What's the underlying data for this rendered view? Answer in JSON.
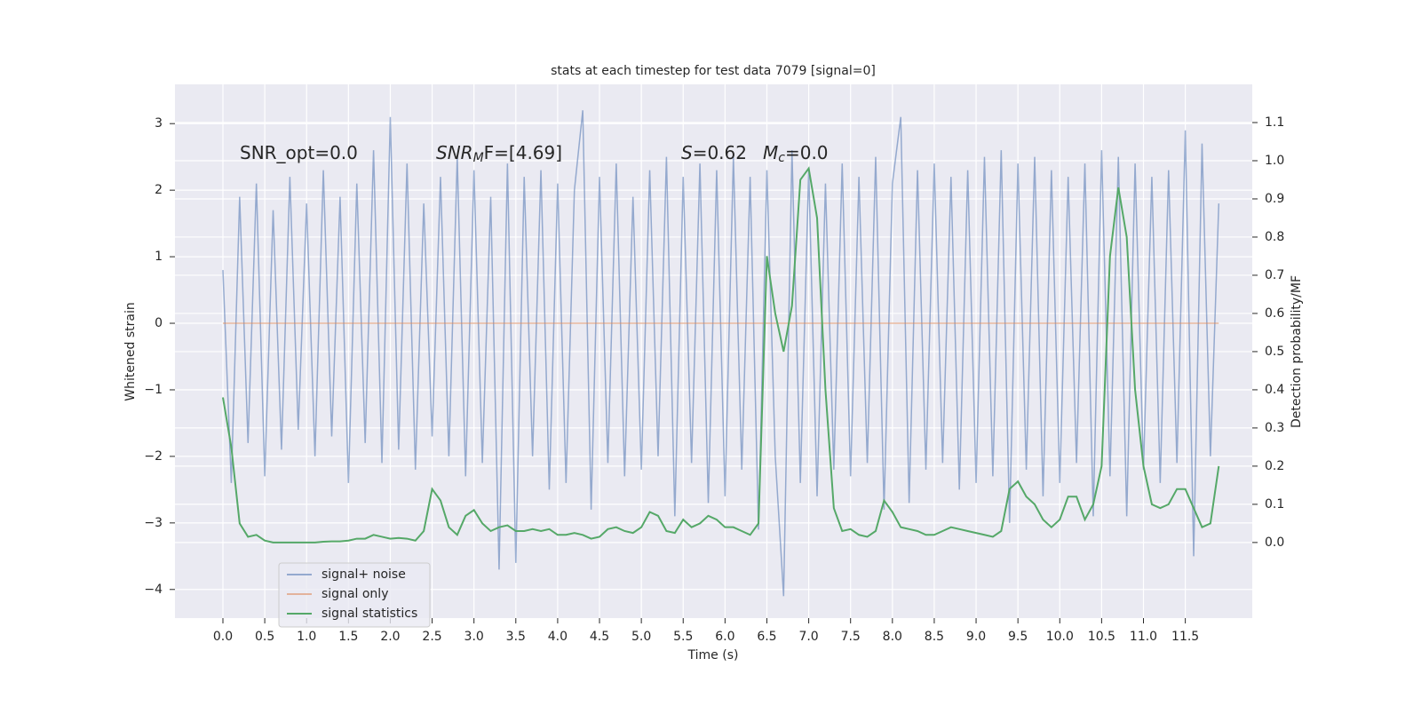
{
  "chart_data": {
    "type": "line",
    "title": "stats at each timestep for test data 7079 [signal=0]",
    "xlabel": "Time (s)",
    "ylabel": "Whitened strain",
    "y2label": "Detection probability/MF",
    "annotations": [
      {
        "text": "SNR_opt=0.0"
      },
      {
        "text": "SNR",
        "sub": "M",
        "after": "F=[4.69]"
      },
      {
        "text": "S",
        "after": "=0.62"
      },
      {
        "text": "M",
        "sub": "c",
        "after": "=0.0"
      }
    ],
    "legend": "lower left",
    "grid": true,
    "background": "#eaeaf2",
    "xlim": [
      -0.573,
      12.3
    ],
    "ylim": [
      -4.43,
      3.59
    ],
    "y2lim": [
      -0.198,
      1.2
    ],
    "xticks": [
      {
        "value": 0,
        "label": "0.0"
      },
      0.5,
      {
        "value": 1,
        "label": "1.0"
      },
      1.5,
      {
        "value": 2,
        "label": "2.0"
      },
      2.5,
      {
        "value": 3,
        "label": "3.0"
      },
      3.5,
      {
        "value": 4,
        "label": "4.0"
      },
      4.5,
      {
        "value": 5,
        "label": "5.0"
      },
      5.5,
      {
        "value": 6,
        "label": "6.0"
      },
      6.5,
      {
        "value": 7,
        "label": "7.0"
      },
      7.5,
      {
        "value": 8,
        "label": "8.0"
      },
      8.5,
      {
        "value": 9,
        "label": "9.0"
      },
      9.5,
      {
        "value": 10,
        "label": "10.0"
      },
      10.5,
      {
        "value": 11,
        "label": "11.0"
      },
      11.5
    ],
    "yticks": [
      {
        "value": -4,
        "label": "−4"
      },
      {
        "value": -3,
        "label": "−3"
      },
      {
        "value": -2,
        "label": "−2"
      },
      {
        "value": -1,
        "label": "−1"
      },
      0,
      1,
      2,
      3
    ],
    "y2ticks": [
      {
        "value": 0,
        "label": "0.0"
      },
      0.1,
      0.2,
      0.3,
      0.4,
      0.5,
      0.6,
      0.7,
      0.8,
      0.9,
      {
        "value": 1,
        "label": "1.0"
      },
      1.1
    ],
    "x": [
      0,
      0.1,
      0.2,
      0.3,
      0.4,
      0.5,
      0.6,
      0.7,
      0.8,
      0.9,
      1,
      1.1,
      1.2,
      1.3,
      1.4,
      1.5,
      1.6,
      1.7,
      1.8,
      1.9,
      2,
      2.1,
      2.2,
      2.3,
      2.4,
      2.5,
      2.6,
      2.7,
      2.8,
      2.9,
      3,
      3.1,
      3.2,
      3.3,
      3.4,
      3.5,
      3.6,
      3.7,
      3.8,
      3.9,
      4,
      4.1,
      4.2,
      4.3,
      4.4,
      4.5,
      4.6,
      4.7,
      4.8,
      4.9,
      5,
      5.1,
      5.2,
      5.3,
      5.4,
      5.5,
      5.6,
      5.7,
      5.8,
      5.9,
      6,
      6.1,
      6.2,
      6.3,
      6.4,
      6.5,
      6.6,
      6.7,
      6.8,
      6.9,
      7,
      7.1,
      7.2,
      7.3,
      7.4,
      7.5,
      7.6,
      7.7,
      7.8,
      7.9,
      8,
      8.1,
      8.2,
      8.3,
      8.4,
      8.5,
      8.6,
      8.7,
      8.8,
      8.9,
      9,
      9.1,
      9.2,
      9.3,
      9.4,
      9.5,
      9.6,
      9.7,
      9.8,
      9.9,
      10,
      10.1,
      10.2,
      10.3,
      10.4,
      10.5,
      10.6,
      10.7,
      10.8,
      10.9,
      11,
      11.1,
      11.2,
      11.3,
      11.4,
      11.5,
      11.6,
      11.7,
      11.8,
      11.9
    ],
    "series": [
      {
        "name": "signal+ noise",
        "color": "#4c72b0",
        "alpha": 0.55,
        "axis": "y",
        "values": [
          0.8,
          -2.4,
          1.9,
          -1.8,
          2.1,
          -2.3,
          1.7,
          -1.9,
          2.2,
          -1.6,
          1.8,
          -2.0,
          2.3,
          -1.7,
          1.9,
          -2.4,
          2.1,
          -1.8,
          2.6,
          -2.1,
          3.1,
          -1.9,
          2.4,
          -2.2,
          1.8,
          -1.7,
          2.2,
          -2.0,
          2.5,
          -2.3,
          2.3,
          -2.1,
          1.9,
          -3.7,
          2.4,
          -3.6,
          2.2,
          -2.0,
          2.3,
          -2.5,
          2.1,
          -2.4,
          2.0,
          3.2,
          -2.8,
          2.2,
          -2.1,
          2.4,
          -2.3,
          1.9,
          -2.2,
          2.3,
          -2.0,
          2.5,
          -2.9,
          2.2,
          -2.1,
          2.4,
          -2.7,
          2.3,
          -2.6,
          2.5,
          -2.2,
          2.2,
          -3.1,
          2.3,
          -2.0,
          -4.1,
          2.6,
          -2.4,
          2.3,
          -2.6,
          2.1,
          -2.2,
          2.4,
          -2.3,
          2.2,
          -2.1,
          2.5,
          -2.8,
          2.1,
          3.1,
          -2.7,
          2.3,
          -2.2,
          2.4,
          -2.1,
          2.2,
          -2.5,
          2.3,
          -2.4,
          2.5,
          -2.3,
          2.6,
          -3.0,
          2.4,
          -2.2,
          2.5,
          -2.6,
          2.3,
          -2.4,
          2.2,
          -2.1,
          2.4,
          -2.9,
          2.6,
          -2.3,
          2.5,
          -2.9,
          2.4,
          -2.2,
          2.2,
          -2.4,
          2.3,
          -2.1,
          2.9,
          -3.5,
          2.7,
          -2.0,
          1.8
        ]
      },
      {
        "name": "signal only",
        "color": "#dd8452",
        "alpha": 0.55,
        "axis": "y",
        "values": [
          0,
          0,
          0,
          0,
          0,
          0,
          0,
          0,
          0,
          0,
          0,
          0,
          0,
          0,
          0,
          0,
          0,
          0,
          0,
          0,
          0,
          0,
          0,
          0,
          0,
          0,
          0,
          0,
          0,
          0,
          0,
          0,
          0,
          0,
          0,
          0,
          0,
          0,
          0,
          0,
          0,
          0,
          0,
          0,
          0,
          0,
          0,
          0,
          0,
          0,
          0,
          0,
          0,
          0,
          0,
          0,
          0,
          0,
          0,
          0,
          0,
          0,
          0,
          0,
          0,
          0,
          0,
          0,
          0,
          0,
          0,
          0,
          0,
          0,
          0,
          0,
          0,
          0,
          0,
          0,
          0,
          0,
          0,
          0,
          0,
          0,
          0,
          0,
          0,
          0,
          0,
          0,
          0,
          0,
          0,
          0,
          0,
          0,
          0,
          0,
          0,
          0,
          0,
          0,
          0,
          0,
          0,
          0,
          0,
          0,
          0,
          0,
          0,
          0,
          0,
          0,
          0,
          0,
          0,
          0
        ]
      },
      {
        "name": "signal statistics",
        "color": "#55a868",
        "alpha": 1,
        "axis": "y2",
        "values": [
          0.38,
          0.25,
          0.05,
          0.015,
          0.02,
          0.005,
          0,
          0,
          0,
          0,
          0,
          0,
          0.002,
          0.003,
          0.003,
          0.005,
          0.01,
          0.01,
          0.02,
          0.015,
          0.01,
          0.012,
          0.01,
          0.005,
          0.03,
          0.14,
          0.11,
          0.04,
          0.02,
          0.07,
          0.085,
          0.05,
          0.03,
          0.04,
          0.045,
          0.03,
          0.03,
          0.035,
          0.03,
          0.035,
          0.02,
          0.02,
          0.025,
          0.02,
          0.01,
          0.015,
          0.035,
          0.04,
          0.03,
          0.025,
          0.04,
          0.08,
          0.07,
          0.03,
          0.025,
          0.06,
          0.04,
          0.05,
          0.07,
          0.06,
          0.04,
          0.04,
          0.03,
          0.02,
          0.05,
          0.75,
          0.6,
          0.5,
          0.62,
          0.95,
          0.98,
          0.85,
          0.4,
          0.09,
          0.03,
          0.035,
          0.02,
          0.015,
          0.03,
          0.11,
          0.08,
          0.04,
          0.035,
          0.03,
          0.02,
          0.02,
          0.03,
          0.04,
          0.035,
          0.03,
          0.025,
          0.02,
          0.015,
          0.03,
          0.14,
          0.16,
          0.12,
          0.1,
          0.06,
          0.04,
          0.06,
          0.12,
          0.12,
          0.06,
          0.1,
          0.2,
          0.75,
          0.93,
          0.8,
          0.4,
          0.2,
          0.1,
          0.09,
          0.1,
          0.14,
          0.14,
          0.09,
          0.04,
          0.05,
          0.2
        ]
      }
    ]
  }
}
